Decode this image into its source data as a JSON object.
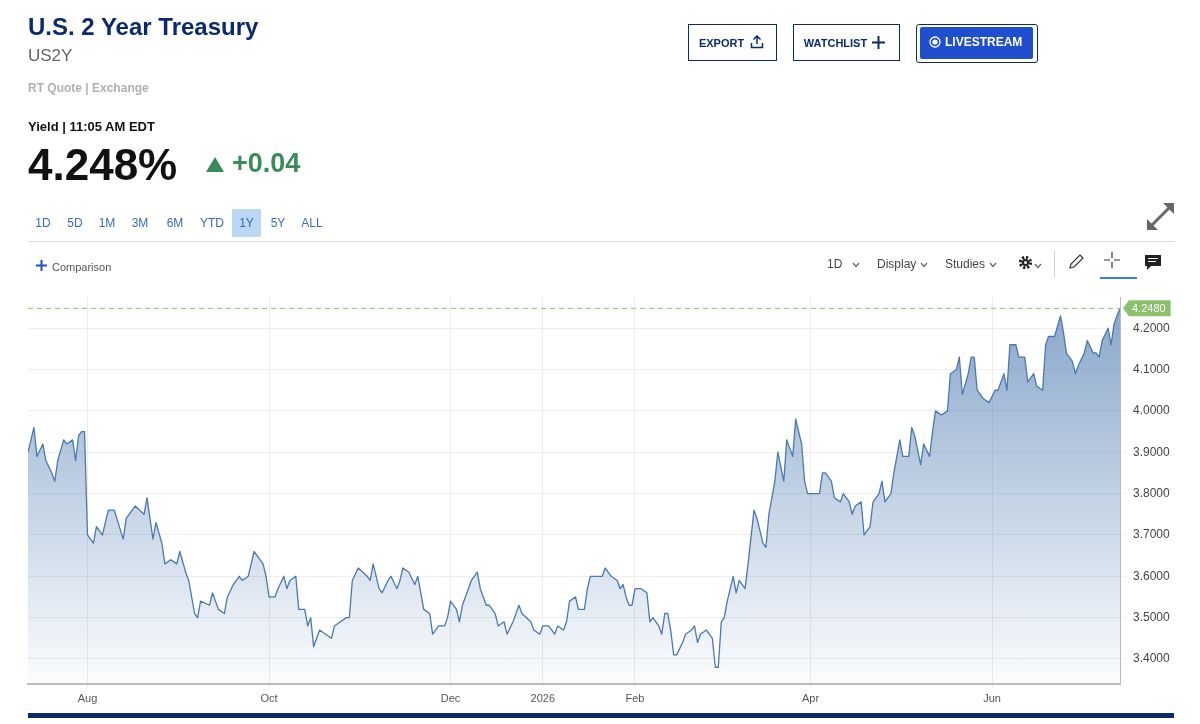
{
  "chart_data": {
    "type": "area",
    "title": "U.S. 2 Year Treasury",
    "subtitle": "US2Y",
    "annotations": [
      "RT Quote | Exchange",
      "Yield | 11:05 AM EDT",
      "4.248%",
      "+0.04",
      "EXPORT",
      "WATCHLIST",
      "LIVESTREAM",
      "1D",
      "5D",
      "1M",
      "3M",
      "6M",
      "YTD",
      "1Y",
      "5Y",
      "ALL",
      "Comparison",
      "1D",
      "Display",
      "Studies"
    ],
    "x": [
      "2025-07-12",
      "2025-07-14",
      "2025-07-15",
      "2025-07-17",
      "2025-07-18",
      "2025-07-20",
      "2025-07-21",
      "2025-07-22",
      "2025-07-24",
      "2025-07-25",
      "2025-07-27",
      "2025-07-28",
      "2025-07-29",
      "2025-07-30",
      "2025-07-31",
      "2025-08-01",
      "2025-08-03",
      "2025-08-04",
      "2025-08-06",
      "2025-08-08",
      "2025-08-10",
      "2025-08-13",
      "2025-08-14",
      "2025-08-17",
      "2025-08-20",
      "2025-08-21",
      "2025-08-23",
      "2025-08-24",
      "2025-08-26",
      "2025-08-27",
      "2025-08-29",
      "2025-08-31",
      "2025-09-01",
      "2025-09-03",
      "2025-09-04",
      "2025-09-06",
      "2025-09-07",
      "2025-09-08",
      "2025-09-11",
      "2025-09-12",
      "2025-09-14",
      "2025-09-16",
      "2025-09-17",
      "2025-09-19",
      "2025-09-21",
      "2025-09-22",
      "2025-09-24",
      "2025-09-26",
      "2025-09-27",
      "2025-09-29",
      "2025-09-30",
      "2025-10-01",
      "2025-10-03",
      "2025-10-04",
      "2025-10-06",
      "2025-10-07",
      "2025-10-08",
      "2025-10-10",
      "2025-10-11",
      "2025-10-13",
      "2025-10-14",
      "2025-10-15",
      "2025-10-16",
      "2025-10-18",
      "2025-10-20",
      "2025-10-22",
      "2025-10-23",
      "2025-10-25",
      "2025-10-27",
      "2025-10-28",
      "2025-10-29",
      "2025-10-31",
      "2025-11-03",
      "2025-11-04",
      "2025-11-05",
      "2025-11-07",
      "2025-11-08",
      "2025-11-10",
      "2025-11-11",
      "2025-11-13",
      "2025-11-14",
      "2025-11-15",
      "2025-11-17",
      "2025-11-19",
      "2025-11-20",
      "2025-11-21",
      "2025-11-22",
      "2025-11-24",
      "2025-11-25",
      "2025-11-27",
      "2025-11-29",
      "2025-11-30",
      "2025-12-01",
      "2025-12-03",
      "2025-12-04",
      "2025-12-05",
      "2025-12-07",
      "2025-12-08",
      "2025-12-10",
      "2025-12-11",
      "2025-12-13",
      "2025-12-14",
      "2025-12-16",
      "2025-12-17",
      "2025-12-19",
      "2025-12-20",
      "2025-12-22",
      "2025-12-23",
      "2025-12-24",
      "2025-12-25",
      "2025-12-28",
      "2025-12-29",
      "2025-12-31",
      "2026-01-01",
      "2026-01-03",
      "2026-01-05",
      "2026-01-06",
      "2026-01-08",
      "2026-01-09",
      "2026-01-10",
      "2026-01-12",
      "2026-01-13",
      "2026-01-15",
      "2026-01-16",
      "2026-01-17",
      "2026-01-21",
      "2026-01-22",
      "2026-01-24",
      "2026-01-26",
      "2026-01-27",
      "2026-01-28",
      "2026-01-29",
      "2026-01-30",
      "2026-01-31",
      "2026-02-01",
      "2026-02-03",
      "2026-02-05",
      "2026-02-06",
      "2026-02-07",
      "2026-02-09",
      "2026-02-10",
      "2026-02-11",
      "2026-02-12",
      "2026-02-13",
      "2026-02-14",
      "2026-02-15",
      "2026-02-17",
      "2026-02-18",
      "2026-02-20",
      "2026-02-21",
      "2026-02-22",
      "2026-02-23",
      "2026-02-25",
      "2026-02-27",
      "2026-02-28",
      "2026-03-01",
      "2026-03-02",
      "2026-03-03",
      "2026-03-04",
      "2026-03-06",
      "2026-03-07",
      "2026-03-08",
      "2026-03-10",
      "2026-03-11",
      "2026-03-13",
      "2026-03-14",
      "2026-03-16",
      "2026-03-17",
      "2026-03-18",
      "2026-03-20",
      "2026-03-21",
      "2026-03-23",
      "2026-03-24",
      "2026-03-26",
      "2026-03-27",
      "2026-03-29",
      "2026-03-30",
      "2026-03-31",
      "2026-04-02",
      "2026-04-04",
      "2026-04-05",
      "2026-04-06",
      "2026-04-08",
      "2026-04-09",
      "2026-04-11",
      "2026-04-12",
      "2026-04-14",
      "2026-04-15",
      "2026-04-16",
      "2026-04-18",
      "2026-04-19",
      "2026-04-21",
      "2026-04-22",
      "2026-04-24",
      "2026-04-25",
      "2026-04-26",
      "2026-04-28",
      "2026-04-29",
      "2026-05-01",
      "2026-05-02",
      "2026-05-04",
      "2026-05-05",
      "2026-05-06",
      "2026-05-08",
      "2026-05-09",
      "2026-05-11",
      "2026-05-12",
      "2026-05-13",
      "2026-05-15",
      "2026-05-17",
      "2026-05-18",
      "2026-05-20",
      "2026-05-21",
      "2026-05-22",
      "2026-05-24",
      "2026-05-25",
      "2026-05-26",
      "2026-05-27",
      "2026-05-29",
      "2026-05-31",
      "2026-06-02",
      "2026-06-03",
      "2026-06-05",
      "2026-06-06",
      "2026-06-07",
      "2026-06-09",
      "2026-06-10",
      "2026-06-12",
      "2026-06-13",
      "2026-06-15",
      "2026-06-16",
      "2026-06-18",
      "2026-06-19",
      "2026-06-20",
      "2026-06-22",
      "2026-06-24",
      "2026-06-25",
      "2026-06-26",
      "2026-06-28",
      "2026-06-29",
      "2026-06-30",
      "2026-07-02",
      "2026-07-03",
      "2026-07-05",
      "2026-07-06",
      "2026-07-07",
      "2026-07-08",
      "2026-07-10",
      "2026-07-11",
      "2026-07-12",
      "2026-07-13",
      "2026-07-14"
    ],
    "series": [
      {
        "color": "#4a78b0",
        "values": [
          3.9,
          3.96,
          3.89,
          3.92,
          3.88,
          3.85,
          3.83,
          3.88,
          3.93,
          3.92,
          3.93,
          3.88,
          3.94,
          3.95,
          3.95,
          3.7,
          3.68,
          3.72,
          3.7,
          3.76,
          3.76,
          3.69,
          3.74,
          3.77,
          3.75,
          3.79,
          3.69,
          3.73,
          3.68,
          3.63,
          3.64,
          3.63,
          3.66,
          3.61,
          3.59,
          3.51,
          3.5,
          3.54,
          3.53,
          3.56,
          3.52,
          3.51,
          3.55,
          3.58,
          3.6,
          3.59,
          3.6,
          3.66,
          3.65,
          3.63,
          3.6,
          3.55,
          3.55,
          3.57,
          3.6,
          3.57,
          3.59,
          3.6,
          3.52,
          3.52,
          3.48,
          3.5,
          3.43,
          3.47,
          3.46,
          3.45,
          3.48,
          3.49,
          3.5,
          3.5,
          3.59,
          3.62,
          3.6,
          3.59,
          3.63,
          3.57,
          3.56,
          3.59,
          3.6,
          3.57,
          3.59,
          3.62,
          3.61,
          3.58,
          3.6,
          3.56,
          3.52,
          3.51,
          3.46,
          3.48,
          3.48,
          3.5,
          3.54,
          3.52,
          3.49,
          3.53,
          3.57,
          3.59,
          3.61,
          3.57,
          3.53,
          3.53,
          3.51,
          3.48,
          3.49,
          3.46,
          3.49,
          3.51,
          3.53,
          3.51,
          3.49,
          3.47,
          3.46,
          3.48,
          3.48,
          3.46,
          3.48,
          3.47,
          3.49,
          3.54,
          3.55,
          3.52,
          3.52,
          3.57,
          3.6,
          3.6,
          3.62,
          3.6,
          3.59,
          3.57,
          3.58,
          3.55,
          3.53,
          3.53,
          3.57,
          3.57,
          3.56,
          3.49,
          3.5,
          3.48,
          3.46,
          3.51,
          3.51,
          3.47,
          3.41,
          3.41,
          3.44,
          3.46,
          3.47,
          3.48,
          3.44,
          3.46,
          3.47,
          3.45,
          3.38,
          3.38,
          3.49,
          3.5,
          3.54,
          3.6,
          3.56,
          3.59,
          3.57,
          3.63,
          3.76,
          3.74,
          3.68,
          3.67,
          3.75,
          3.83,
          3.9,
          3.83,
          3.93,
          3.89,
          3.98,
          3.92,
          3.83,
          3.8,
          3.8,
          3.8,
          3.85,
          3.85,
          3.83,
          3.79,
          3.78,
          3.8,
          3.78,
          3.75,
          3.77,
          3.78,
          3.7,
          3.72,
          3.78,
          3.8,
          3.83,
          3.78,
          3.8,
          3.85,
          3.93,
          3.89,
          3.89,
          3.96,
          3.94,
          3.87,
          3.92,
          3.89,
          3.95,
          4.0,
          3.99,
          4.0,
          4.09,
          4.1,
          4.13,
          4.04,
          4.09,
          4.13,
          4.13,
          4.05,
          4.03,
          4.02,
          4.05,
          4.05,
          4.09,
          4.05,
          4.16,
          4.16,
          4.13,
          4.13,
          4.07,
          4.09,
          4.06,
          4.05,
          4.16,
          4.18,
          4.18,
          4.23,
          4.19,
          4.14,
          4.12,
          4.09,
          4.11,
          4.14,
          4.17,
          4.14,
          4.14,
          4.13,
          4.17,
          4.2,
          4.16,
          4.21,
          4.23,
          4.248
        ]
      }
    ],
    "xlim": [
      "2025-07-12",
      "2026-07-14"
    ],
    "xticks": [
      {
        "value": "2025-08-01",
        "label": "Aug"
      },
      {
        "value": "2025-10-01",
        "label": "Oct"
      },
      {
        "value": "2025-12-01",
        "label": "Dec"
      },
      {
        "value": "2026-01-01",
        "label": "2026"
      },
      {
        "value": "2026-02-01",
        "label": "Feb"
      },
      {
        "value": "2026-04-01",
        "label": "Apr"
      },
      {
        "value": "2026-06-01",
        "label": "Jun"
      }
    ],
    "ylim": [
      3.34,
      4.275
    ],
    "yticks": [
      {
        "value": 3.4,
        "label": "3.4000"
      },
      {
        "value": 3.5,
        "label": "3.5000"
      },
      {
        "value": 3.6,
        "label": "3.6000"
      },
      {
        "value": 3.7,
        "label": "3.7000"
      },
      {
        "value": 3.8,
        "label": "3.8000"
      },
      {
        "value": 3.9,
        "label": "3.9000"
      },
      {
        "value": 4.0,
        "label": "4.0000"
      },
      {
        "value": 4.1,
        "label": "4.1000"
      },
      {
        "value": 4.2,
        "label": "4.2000"
      }
    ],
    "ref_lines": [
      {
        "axis": "y",
        "value": 4.248,
        "label": "4.2480",
        "color": "#8cc06a",
        "line_style": "dashed"
      }
    ],
    "grid": true,
    "legend": false,
    "marker": "none",
    "line_style": "solid"
  }
}
